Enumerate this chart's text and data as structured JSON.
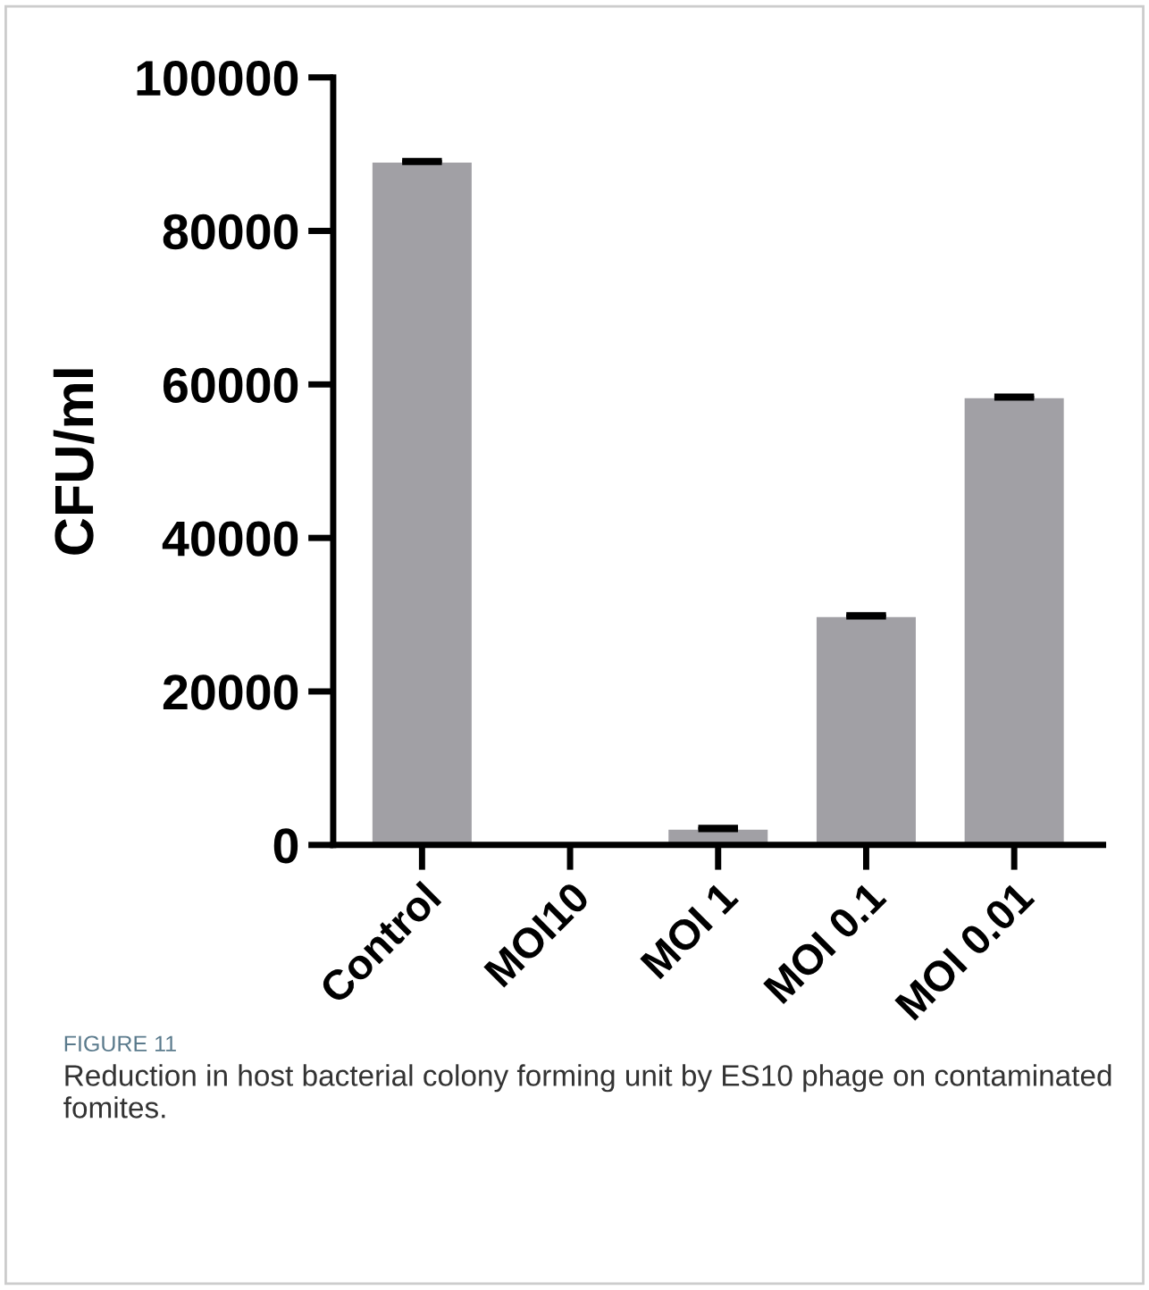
{
  "chart_data": {
    "type": "bar",
    "ylabel": "CFU/ml",
    "categories": [
      "Control",
      "MOI10",
      "MOI 1",
      "MOI 0.1",
      "MOI 0.01"
    ],
    "values": [
      88900,
      0,
      2000,
      29700,
      58200
    ],
    "errors": [
      300,
      null,
      300,
      300,
      300
    ],
    "color": "#a1a0a5",
    "ylim": [
      0,
      100000
    ],
    "yticks": [
      0,
      20000,
      40000,
      60000,
      80000,
      100000
    ],
    "grid": false,
    "annotations": [
      "FIGURE 11",
      "Reduction in host bacterial colony forming unit by ES10 phage on contaminated fomites."
    ]
  }
}
